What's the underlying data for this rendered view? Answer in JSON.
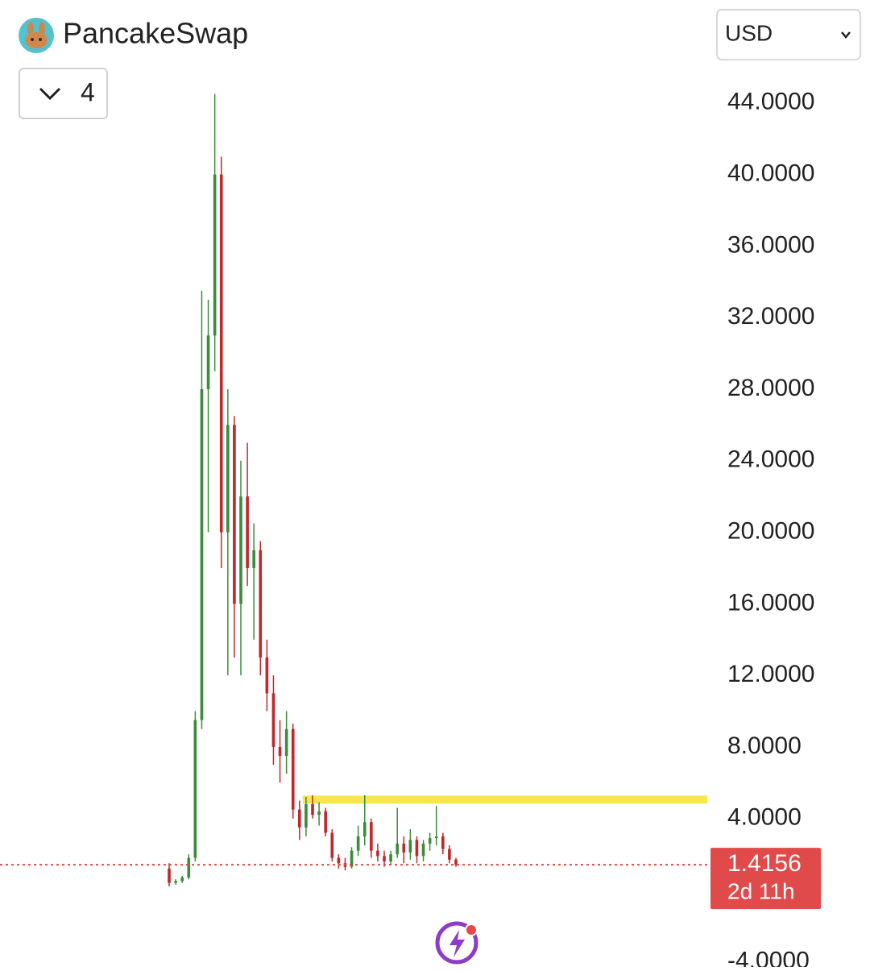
{
  "header": {
    "brand": "PancakeSwap",
    "interval": "4",
    "currency": "USD"
  },
  "chart_data": {
    "type": "candlestick",
    "series": [
      {
        "up_color": "#3d8b3d",
        "down_color": "#c0282d",
        "open": [
          1.2,
          0.4,
          0.5,
          0.7,
          1.8,
          9.5,
          28,
          31,
          40,
          20,
          26,
          16,
          22,
          18,
          19,
          13,
          11,
          8,
          7.5,
          9,
          4.5,
          3.5,
          4.8,
          4.2,
          4.4,
          3.2,
          1.8,
          1.5,
          1.3,
          2.2,
          3.0,
          3.8,
          2.2,
          1.9,
          1.6,
          2.0,
          2.6,
          2.1,
          2.8,
          1.9,
          2.6,
          2.9,
          3.0,
          2.3,
          1.7
        ],
        "high": [
          1.5,
          0.6,
          0.8,
          2.0,
          10,
          33.5,
          33,
          44.5,
          41,
          28,
          26.5,
          24,
          25,
          20.5,
          19.5,
          14,
          12,
          9.5,
          10,
          9.3,
          5,
          5.2,
          5.3,
          4.9,
          4.6,
          3.4,
          2,
          1.8,
          2.4,
          3.6,
          5.3,
          4,
          2.6,
          2.2,
          2.2,
          4.6,
          3,
          3.4,
          3,
          2.8,
          3.2,
          4.7,
          3.2,
          2.5,
          1.8
        ],
        "low": [
          0.2,
          0.3,
          0.4,
          0.6,
          1.6,
          9,
          20,
          29,
          18,
          12,
          13,
          12,
          17,
          14,
          12,
          10,
          7,
          6,
          6.5,
          4,
          2.8,
          3,
          4,
          3.6,
          3,
          1.6,
          1.2,
          1.1,
          1.2,
          1.9,
          2.5,
          1.8,
          1.6,
          1.3,
          1.4,
          1.8,
          1.5,
          1.7,
          1.5,
          1.6,
          2.2,
          2.5,
          2,
          1.5,
          1.3
        ],
        "close": [
          0.4,
          0.5,
          0.7,
          1.8,
          9.5,
          28,
          31,
          40,
          20,
          26,
          16,
          22,
          18,
          19,
          13,
          11,
          8,
          7.5,
          9,
          4.5,
          3.5,
          4.8,
          4.2,
          4.4,
          3.2,
          1.8,
          1.5,
          1.3,
          2.2,
          3.0,
          3.8,
          2.2,
          1.9,
          1.6,
          2.0,
          2.6,
          2.1,
          2.8,
          1.9,
          2.6,
          2.9,
          3.0,
          2.3,
          1.7,
          1.4156
        ]
      }
    ],
    "ylim": [
      -4.3,
      44.8
    ],
    "yticks": [
      {
        "value": -4,
        "label": "-4.0000"
      },
      {
        "value": 4,
        "label": "4.0000"
      },
      {
        "value": 8,
        "label": "8.0000"
      },
      {
        "value": 12,
        "label": "12.0000"
      },
      {
        "value": 16,
        "label": "16.0000"
      },
      {
        "value": 20,
        "label": "20.0000"
      },
      {
        "value": 24,
        "label": "24.0000"
      },
      {
        "value": 28,
        "label": "28.0000"
      },
      {
        "value": 32,
        "label": "32.0000"
      },
      {
        "value": 36,
        "label": "36.0000"
      },
      {
        "value": 40,
        "label": "40.0000"
      },
      {
        "value": 44,
        "label": "44.0000"
      }
    ],
    "last_price": 1.4156,
    "last_price_color": "#e04a4a",
    "countdown": "2d 11h",
    "hline": {
      "value": 5.05,
      "color": "#f6e84a"
    }
  }
}
